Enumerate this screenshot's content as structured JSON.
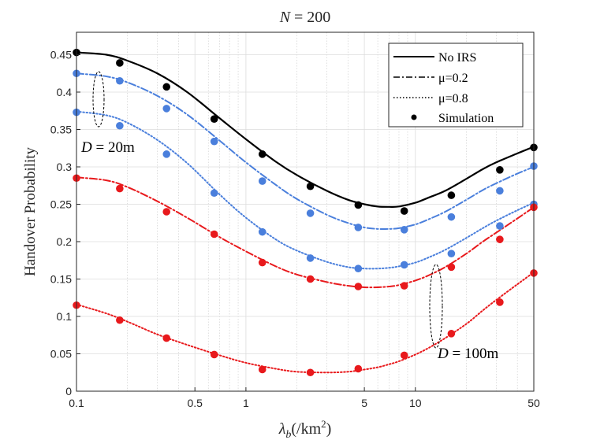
{
  "chart_data": {
    "type": "line",
    "title": "N = 200",
    "title_parts": {
      "var": "N",
      "rest": " = 200"
    },
    "xlabel": "λb(/km²)",
    "xlabel_parts": {
      "lambda": "λ",
      "sub": "b",
      "unit": "(/km",
      "sup": "2",
      "close": ")"
    },
    "ylabel": "Handover Probability",
    "xscale": "log",
    "xlim": [
      0.1,
      50
    ],
    "ylim": [
      0,
      0.48
    ],
    "grid": true,
    "xticks": [
      0.1,
      0.5,
      1,
      5,
      10,
      50
    ],
    "xtick_labels": [
      "0.1",
      "0.5",
      "1",
      "5",
      "10",
      "50"
    ],
    "yticks": [
      0,
      0.05,
      0.1,
      0.15,
      0.2,
      0.25,
      0.3,
      0.35,
      0.4,
      0.45
    ],
    "ytick_labels": [
      "0",
      "0.05",
      "0.1",
      "0.15",
      "0.2",
      "0.25",
      "0.3",
      "0.35",
      "0.4",
      "0.45"
    ],
    "legend": {
      "placement": "top-right",
      "entries": [
        {
          "label": "No IRS",
          "style": "solid"
        },
        {
          "label": "μ=0.2",
          "style": "dashdot"
        },
        {
          "label": "μ=0.8",
          "style": "dotted"
        },
        {
          "label": "Simulation",
          "style": "marker"
        }
      ]
    },
    "annotations": [
      {
        "text": "D = 20m",
        "var": "D",
        "rest": " = 20m"
      },
      {
        "text": "D = 100m",
        "var": "D",
        "rest": " = 100m"
      }
    ],
    "sim_x": [
      0.1,
      0.18,
      0.34,
      0.65,
      1.25,
      2.4,
      4.6,
      8.6,
      16.3,
      31.5,
      50
    ],
    "series": [
      {
        "name": "No IRS",
        "color": "#000000",
        "style": "solid",
        "curve_x": [
          0.1,
          0.15,
          0.2,
          0.3,
          0.45,
          0.7,
          1,
          1.5,
          2,
          3,
          4,
          5,
          6,
          7,
          8,
          10,
          12,
          15,
          20,
          25,
          30,
          40,
          50
        ],
        "curve_y": [
          0.453,
          0.45,
          0.442,
          0.425,
          0.4,
          0.365,
          0.337,
          0.307,
          0.289,
          0.268,
          0.256,
          0.25,
          0.247,
          0.2465,
          0.247,
          0.252,
          0.259,
          0.268,
          0.284,
          0.297,
          0.306,
          0.318,
          0.327
        ],
        "sim_y": [
          0.453,
          0.439,
          0.407,
          0.364,
          0.317,
          0.274,
          0.249,
          0.241,
          0.262,
          0.296,
          0.326
        ]
      },
      {
        "name": "μ=0.2, D=20m",
        "color": "#4a7fdc",
        "style": "dashdot",
        "curve_x": [
          0.1,
          0.15,
          0.2,
          0.3,
          0.45,
          0.7,
          1,
          1.5,
          2,
          3,
          4,
          5,
          6,
          7,
          8,
          10,
          12,
          15,
          20,
          25,
          30,
          40,
          50
        ],
        "curve_y": [
          0.425,
          0.421,
          0.413,
          0.395,
          0.37,
          0.335,
          0.306,
          0.276,
          0.257,
          0.236,
          0.225,
          0.219,
          0.217,
          0.217,
          0.218,
          0.223,
          0.23,
          0.24,
          0.256,
          0.269,
          0.278,
          0.291,
          0.3
        ],
        "sim_y": [
          0.425,
          0.415,
          0.378,
          0.334,
          0.281,
          0.238,
          0.219,
          0.216,
          0.233,
          0.268,
          0.301
        ]
      },
      {
        "name": "μ=0.8, D=20m",
        "color": "#4a7fdc",
        "style": "dotted",
        "curve_x": [
          0.1,
          0.15,
          0.2,
          0.3,
          0.45,
          0.7,
          1,
          1.5,
          2,
          3,
          4,
          5,
          6,
          7,
          8,
          10,
          12,
          15,
          20,
          25,
          30,
          40,
          50
        ],
        "curve_y": [
          0.374,
          0.369,
          0.359,
          0.336,
          0.305,
          0.263,
          0.232,
          0.203,
          0.188,
          0.173,
          0.166,
          0.164,
          0.164,
          0.165,
          0.167,
          0.172,
          0.179,
          0.189,
          0.205,
          0.218,
          0.228,
          0.242,
          0.252
        ],
        "sim_y": [
          0.373,
          0.355,
          0.317,
          0.265,
          0.213,
          0.178,
          0.164,
          0.169,
          0.184,
          0.221,
          0.25
        ]
      },
      {
        "name": "μ=0.2, D=100m",
        "color": "#e8191c",
        "style": "dashdot",
        "curve_x": [
          0.1,
          0.15,
          0.2,
          0.3,
          0.45,
          0.7,
          1,
          1.5,
          2,
          3,
          4,
          5,
          6,
          7,
          8,
          10,
          12,
          15,
          20,
          25,
          30,
          40,
          50
        ],
        "curve_y": [
          0.286,
          0.282,
          0.273,
          0.254,
          0.232,
          0.206,
          0.187,
          0.167,
          0.156,
          0.146,
          0.141,
          0.139,
          0.139,
          0.14,
          0.142,
          0.148,
          0.155,
          0.166,
          0.184,
          0.2,
          0.212,
          0.231,
          0.246
        ],
        "sim_y": [
          0.285,
          0.271,
          0.24,
          0.21,
          0.172,
          0.15,
          0.14,
          0.141,
          0.166,
          0.203,
          0.246
        ]
      },
      {
        "name": "μ=0.8, D=100m",
        "color": "#e8191c",
        "style": "dotted",
        "curve_x": [
          0.1,
          0.15,
          0.2,
          0.3,
          0.45,
          0.7,
          1,
          1.5,
          2,
          3,
          4,
          5,
          6,
          7,
          8,
          10,
          12,
          15,
          20,
          25,
          30,
          40,
          50
        ],
        "curve_y": [
          0.116,
          0.104,
          0.093,
          0.076,
          0.062,
          0.048,
          0.038,
          0.03,
          0.026,
          0.025,
          0.026,
          0.029,
          0.032,
          0.036,
          0.04,
          0.049,
          0.058,
          0.071,
          0.09,
          0.108,
          0.122,
          0.143,
          0.159
        ],
        "sim_y": [
          0.115,
          0.095,
          0.071,
          0.049,
          0.029,
          0.025,
          0.03,
          0.048,
          0.077,
          0.119,
          0.158
        ]
      }
    ]
  }
}
